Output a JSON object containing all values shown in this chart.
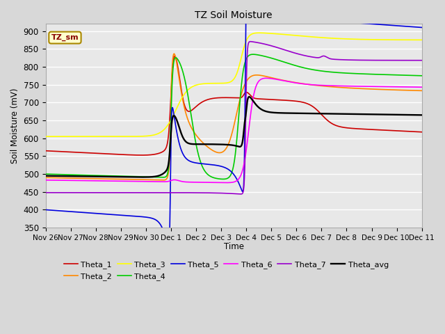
{
  "title": "TZ Soil Moisture",
  "ylabel": "Soil Moisture (mV)",
  "xlabel": "Time",
  "ylim": [
    350,
    920
  ],
  "xlim": [
    0,
    15
  ],
  "background_color": "#d8d8d8",
  "plot_bg": "#e8e8e8",
  "grid_color": "white",
  "inset_label": "TZ_sm",
  "series_colors": {
    "Theta_1": "#cc0000",
    "Theta_2": "#ff8800",
    "Theta_3": "#ffff00",
    "Theta_4": "#00cc00",
    "Theta_5": "#0000dd",
    "Theta_6": "#ff00ff",
    "Theta_7": "#9900cc",
    "Theta_avg": "#000000"
  },
  "x_tick_labels": [
    "Nov 26",
    "Nov 27",
    "Nov 28",
    "Nov 29",
    "Nov 30",
    "Dec 1",
    "Dec 2",
    "Dec 3",
    "Dec 4",
    "Dec 5",
    "Dec 6",
    "Dec 7",
    "Dec 8",
    "Dec 9",
    "Dec 10",
    "Dec 11"
  ],
  "x_tick_positions": [
    0,
    1,
    2,
    3,
    4,
    5,
    6,
    7,
    8,
    9,
    10,
    11,
    12,
    13,
    14,
    15
  ],
  "yticks": [
    350,
    400,
    450,
    500,
    550,
    600,
    650,
    700,
    750,
    800,
    850,
    900
  ],
  "linewidth": 1.2
}
